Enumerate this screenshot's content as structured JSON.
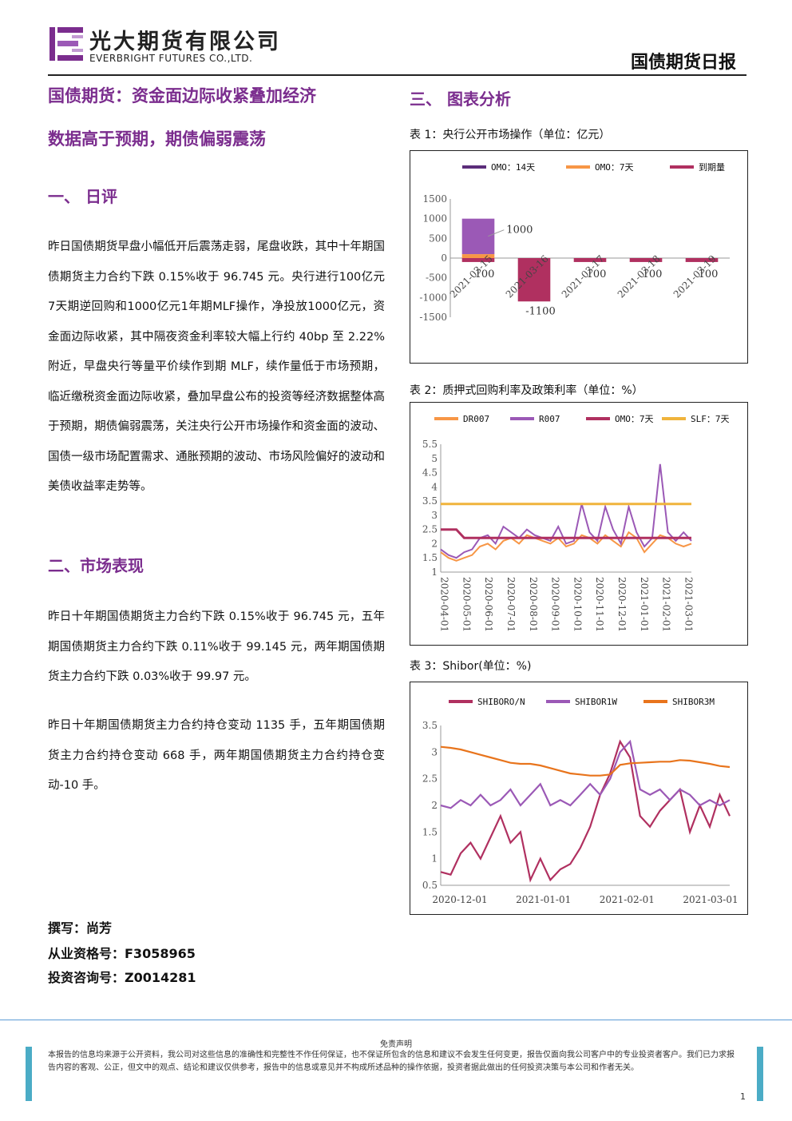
{
  "header": {
    "company_cn": "光大期货有限公司",
    "company_en": "EVERBRIGHT FUTURES CO.,LTD.",
    "report_title": "国债期货日报"
  },
  "article": {
    "title_line1": "国债期货：资金面边际收紧叠加经济",
    "title_line2": "数据高于预期，期债偏弱震荡",
    "section1_heading": "一、  日评",
    "section1_paragraph": "昨日国债期货早盘小幅低开后震荡走弱，尾盘收跌，其中十年期国债期货主力合约下跌 0.15%收于 96.745 元。央行进行100亿元7天期逆回购和1000亿元1年期MLF操作，净投放1000亿元，资金面边际收紧，其中隔夜资金利率较大幅上行约 40bp 至 2.22%附近，早盘央行等量平价续作到期 MLF，续作量低于市场预期，临近缴税资金面边际收紧，叠加早盘公布的投资等经济数据整体高于预期，期债偏弱震荡，关注央行公开市场操作和资金面的波动、国债一级市场配置需求、通胀预期的波动、市场风险偏好的波动和美债收益率走势等。",
    "section2_heading": "二、市场表现",
    "section2_paragraph1": "昨日十年期国债期货主力合约下跌 0.15%收于 96.745 元，五年期国债期货主力合约下跌 0.11%收于 99.145 元，两年期国债期货主力合约下跌 0.03%收于 99.97 元。",
    "section2_paragraph2": "昨日十年期国债期货主力合约持仓变动 1135 手，五年期国债期货主力合约持仓变动 668 手，两年期国债期货主力合约持仓变动-10 手。",
    "author": "撰写：尚芳",
    "qualification": "从业资格号：F3058965",
    "consulting": "投资咨询号：Z0014281"
  },
  "charts_section": {
    "heading": "三、  图表分析"
  },
  "chart1": {
    "caption": "表 1：央行公开市场操作（单位：亿元）",
    "chart_data": {
      "type": "bar",
      "categories": [
        "2021-03-15",
        "2021-03-16",
        "2021-03-17",
        "2021-03-18",
        "2021-03-19"
      ],
      "series": [
        {
          "name": "OMO：14天",
          "values": [
            0,
            0,
            0,
            0,
            0
          ]
        },
        {
          "name": "OMO：7天",
          "values": [
            100,
            0,
            0,
            0,
            0
          ]
        },
        {
          "name": "到期量",
          "values": [
            -100,
            -1100,
            -100,
            -100,
            -100
          ]
        }
      ],
      "extra_bar": {
        "category": "2021-03-15",
        "value": 1000
      },
      "data_labels": [
        "1000",
        "100",
        "-1100",
        "100",
        "100",
        "100"
      ],
      "y_ticks": [
        "1500",
        "1000",
        "500",
        "0",
        "-500",
        "-1000",
        "-1500"
      ],
      "ylim": [
        -1500,
        1500
      ],
      "colors": [
        "#5b2d7a",
        "#f79646",
        "#b03060",
        "#9b59b6"
      ],
      "legend": "top"
    }
  },
  "chart2": {
    "caption": "表 2：质押式回购利率及政策利率（单位：%）",
    "chart_data": {
      "type": "line",
      "x_ticks": [
        "2020-04-01",
        "2020-05-01",
        "2020-06-01",
        "2020-07-01",
        "2020-08-01",
        "2020-09-01",
        "2020-10-01",
        "2020-11-01",
        "2020-12-01",
        "2021-01-01",
        "2021-02-01",
        "2021-03-01"
      ],
      "y_ticks": [
        "5.5",
        "5",
        "4.5",
        "4",
        "3.5",
        "3",
        "2.5",
        "2",
        "1.5",
        "1"
      ],
      "ylim": [
        1,
        5.5
      ],
      "series": [
        {
          "name": "DR007",
          "color": "#f79646",
          "values": [
            1.7,
            1.5,
            1.4,
            1.5,
            1.6,
            1.9,
            2.0,
            1.8,
            2.1,
            2.2,
            2.0,
            2.3,
            2.2,
            2.1,
            2.0,
            2.2,
            1.9,
            2.0,
            2.3,
            2.2,
            2.0,
            2.3,
            2.1,
            1.9,
            2.4,
            2.2,
            1.7,
            2.0,
            2.3,
            2.2,
            2.0,
            1.9,
            2.0
          ]
        },
        {
          "name": "R007",
          "color": "#9b59b6",
          "values": [
            1.8,
            1.6,
            1.5,
            1.7,
            1.8,
            2.2,
            2.3,
            2.0,
            2.6,
            2.4,
            2.2,
            2.5,
            2.3,
            2.2,
            2.1,
            2.6,
            2.0,
            2.1,
            3.4,
            2.4,
            2.1,
            3.3,
            2.5,
            2.0,
            3.3,
            2.4,
            1.9,
            2.2,
            4.8,
            2.4,
            2.1,
            2.4,
            2.1
          ]
        },
        {
          "name": "OMO：7天",
          "color": "#b03060",
          "values": [
            2.5,
            2.5,
            2.5,
            2.2,
            2.2,
            2.2,
            2.2,
            2.2,
            2.2,
            2.2,
            2.2,
            2.2,
            2.2,
            2.2,
            2.2,
            2.2,
            2.2,
            2.2,
            2.2,
            2.2,
            2.2,
            2.2,
            2.2,
            2.2,
            2.2,
            2.2,
            2.2,
            2.2,
            2.2,
            2.2,
            2.2,
            2.2,
            2.2
          ]
        },
        {
          "name": "SLF：7天",
          "color": "#f0b43c",
          "values": [
            3.4,
            3.4,
            3.4,
            3.4,
            3.4,
            3.4,
            3.4,
            3.4,
            3.4,
            3.4,
            3.4,
            3.4,
            3.4,
            3.4,
            3.4,
            3.4,
            3.4,
            3.4,
            3.4,
            3.4,
            3.4,
            3.4,
            3.4,
            3.4,
            3.4,
            3.4,
            3.4,
            3.4,
            3.4,
            3.4,
            3.4,
            3.4,
            3.4
          ]
        }
      ],
      "legend": "top"
    }
  },
  "chart3": {
    "caption": "表 3：Shibor(单位：%)",
    "chart_data": {
      "type": "line",
      "x_ticks": [
        "2020-12-01",
        "2021-01-01",
        "2021-02-01",
        "2021-03-01"
      ],
      "y_ticks": [
        "3.5",
        "3",
        "2.5",
        "2",
        "1.5",
        "1",
        "0.5"
      ],
      "ylim": [
        0.5,
        3.5
      ],
      "series": [
        {
          "name": "SHIBORO/N",
          "color": "#b03060",
          "values": [
            0.75,
            0.7,
            1.1,
            1.3,
            1.0,
            1.4,
            1.8,
            1.3,
            1.5,
            0.6,
            1.0,
            0.6,
            0.8,
            0.9,
            1.2,
            1.6,
            2.2,
            2.6,
            3.2,
            2.9,
            1.8,
            1.6,
            1.9,
            2.1,
            2.3,
            1.5,
            2.0,
            1.6,
            2.2,
            1.8
          ]
        },
        {
          "name": "SHIBOR1W",
          "color": "#9b59b6",
          "values": [
            2.0,
            1.95,
            2.1,
            2.0,
            2.2,
            2.0,
            2.1,
            2.3,
            2.0,
            2.2,
            2.4,
            2.0,
            2.1,
            2.0,
            2.2,
            2.4,
            2.2,
            2.5,
            3.0,
            3.2,
            2.3,
            2.2,
            2.3,
            2.1,
            2.3,
            2.2,
            2.0,
            2.1,
            2.0,
            2.1
          ]
        },
        {
          "name": "SHIBOR3M",
          "color": "#e8741c",
          "values": [
            3.1,
            3.08,
            3.05,
            3.0,
            2.95,
            2.9,
            2.85,
            2.8,
            2.78,
            2.78,
            2.75,
            2.7,
            2.65,
            2.6,
            2.58,
            2.56,
            2.56,
            2.58,
            2.76,
            2.79,
            2.8,
            2.81,
            2.82,
            2.82,
            2.85,
            2.84,
            2.81,
            2.78,
            2.74,
            2.72
          ]
        }
      ],
      "legend": "top"
    }
  },
  "footer": {
    "disclaimer_title": "免责声明",
    "disclaimer_text": "本报告的信息均来源于公开资料，我公司对这些信息的准确性和完整性不作任何保证，也不保证所包含的信息和建议不会发生任何变更，报告仅面向我公司客户中的专业投资者客户。我们已力求报告内容的客观、公正，但文中的观点、结论和建议仅供参考，报告中的信息或意见并不构成所述品种的操作依据，投资者据此做出的任何投资决策与本公司和作者无关。",
    "page_number": "1"
  }
}
